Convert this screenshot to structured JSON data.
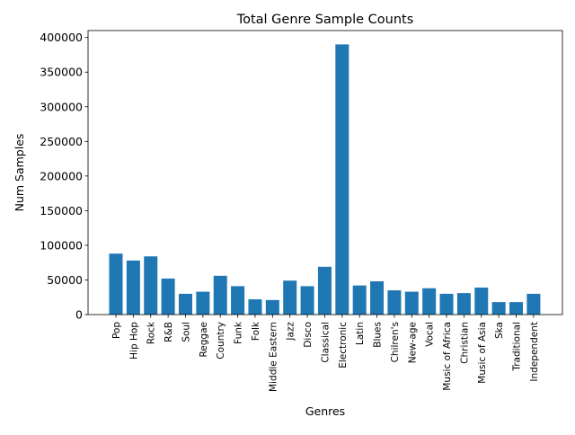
{
  "chart_data": {
    "type": "bar",
    "title": "Total Genre Sample Counts",
    "xlabel": "Genres",
    "ylabel": "Num Samples",
    "ylim": [
      0,
      410000
    ],
    "yticks": [
      0,
      50000,
      100000,
      150000,
      200000,
      250000,
      300000,
      350000,
      400000
    ],
    "ytick_labels": [
      "0",
      "50000",
      "100000",
      "150000",
      "200000",
      "250000",
      "300000",
      "350000",
      "400000"
    ],
    "grid": false,
    "bar_color": "#1f77b4",
    "categories": [
      "Pop",
      "Hip Hop",
      "Rock",
      "R&B",
      "Soul",
      "Reggae",
      "Country",
      "Funk",
      "Folk",
      "Middle Eastern",
      "Jazz",
      "Disco",
      "Classical",
      "Electronic",
      "Latin",
      "Blues",
      "Chilren's",
      "New-age",
      "Vocal",
      "Music of Africa",
      "Christian",
      "Music of Asia",
      "Ska",
      "Traditional",
      "Independent"
    ],
    "values": [
      88000,
      78000,
      84000,
      52000,
      30000,
      33000,
      56000,
      41000,
      22000,
      21000,
      49000,
      41000,
      69000,
      390000,
      42000,
      48000,
      35000,
      33000,
      38000,
      30000,
      31000,
      39000,
      18000,
      18000,
      30000
    ]
  }
}
